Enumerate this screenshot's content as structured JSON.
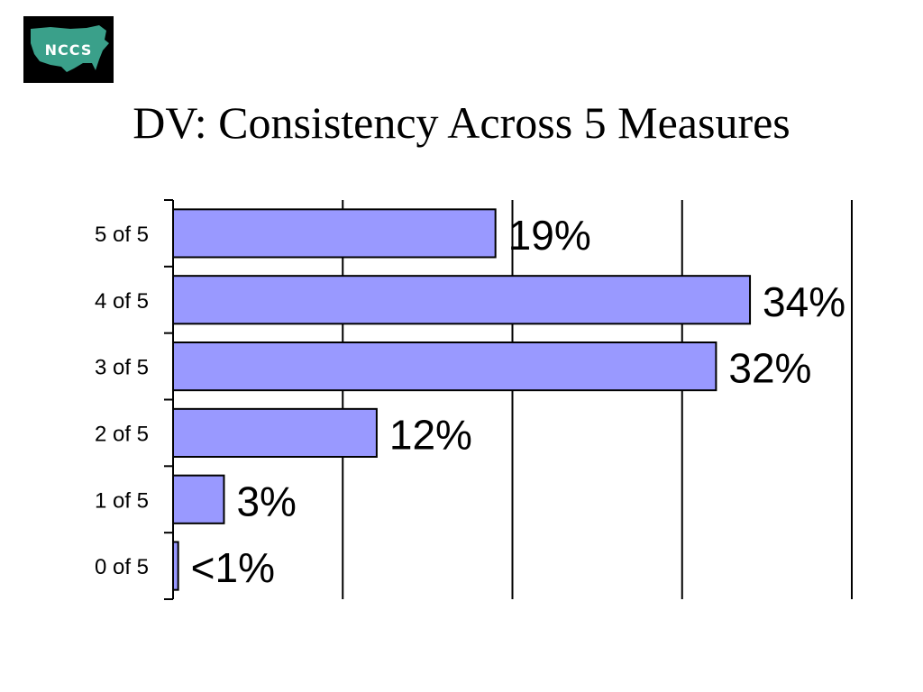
{
  "logo": {
    "text": "NCCS"
  },
  "colors": {
    "bar_fill": "#9999ff",
    "bar_stroke": "#000000",
    "logo_bg": "#000000",
    "logo_map": "#3aa08a"
  },
  "chart_data": {
    "type": "bar",
    "orientation": "horizontal",
    "title": "DV: Consistency Across 5 Measures",
    "categories": [
      "5 of 5",
      "4 of 5",
      "3 of 5",
      "2 of 5",
      "1 of 5",
      "0 of 5"
    ],
    "values": [
      19,
      34,
      32,
      12,
      3,
      0.3
    ],
    "data_labels": [
      "19%",
      "34%",
      "32%",
      "12%",
      "3%",
      "<1%"
    ],
    "xlim": [
      0,
      40
    ],
    "grid": "vertical",
    "xlabel": "",
    "ylabel": ""
  }
}
